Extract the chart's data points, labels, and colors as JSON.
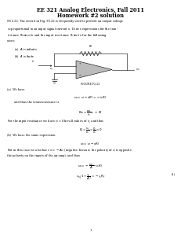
{
  "title_line1": "EE 321 Analog Electronics, Fall 2011",
  "title_line2": "Homework #2 solution",
  "background_color": "#ffffff",
  "text_color": "#000000",
  "figsize": [
    2.31,
    3.0
  ],
  "dpi": 100,
  "body_lines": [
    "S8 2.22. The circuit in Fig. P2.22 is frequently used to provide an output voltage",
    "$v_o$ proportional to an input signal current $i_s$. Derive expressions for the tran-",
    "sistance $R_m \\equiv v_o/i_s$ and the input resistance $R_i \\equiv v_i/i_s$ for the following",
    "cases:"
  ],
  "part_a_label": "(a)  $A$ is infinite.",
  "part_b_label": "(b)  $A$ is finite.",
  "figure_label": "FIGURE P2.22",
  "part_a_head": "(a)  We have",
  "eq1": "$v_o = v_i - i_s R_f = -i_s R_f$",
  "text1": "and thus the transresistance is",
  "eq2": "$R_m = \\dfrac{v_o}{i_s} = -R_f$",
  "text2": "For the input resistance we have $v_i = 0$ for all values of $i_s$, and thus",
  "eq3": "$R_i = \\dfrac{v_i}{i_s} = \\dfrac{0}{i_s} = 0$",
  "part_b_head": "(b)  We have the same expression",
  "eq4": "$v_o = v_i - i_s R_f$",
  "text3a": "But in this case we also have $v_i = -Av_i$ (negative because the polarity of $v_i$ is opposite",
  "text3b": "the polarity on the inputs of the op-amp), and thus",
  "eq5": "$v_o = -\\dfrac{v_o}{A} - i_s R_f$",
  "eq6": "$v_o\\left(1 + \\dfrac{1}{A}\\right) = -i_s R_f$",
  "eq6_num": "(1)",
  "page_num": "1"
}
